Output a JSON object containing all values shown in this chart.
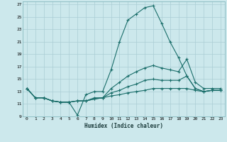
{
  "xlabel": "Humidex (Indice chaleur)",
  "ylabel": "",
  "bg_color": "#cce8ec",
  "grid_color": "#aacdd4",
  "line_color": "#1a6e6a",
  "xlim": [
    -0.5,
    23.5
  ],
  "ylim": [
    9,
    27.5
  ],
  "yticks": [
    9,
    11,
    13,
    15,
    17,
    19,
    21,
    23,
    25,
    27
  ],
  "xticks": [
    0,
    1,
    2,
    3,
    4,
    5,
    6,
    7,
    8,
    9,
    10,
    11,
    12,
    13,
    14,
    15,
    16,
    17,
    18,
    19,
    20,
    21,
    22,
    23
  ],
  "series": [
    [
      13.5,
      12.0,
      12.0,
      11.5,
      11.3,
      11.3,
      9.2,
      12.5,
      13.0,
      13.0,
      16.5,
      21.0,
      24.5,
      25.5,
      26.5,
      26.8,
      24.0,
      21.0,
      18.5,
      15.5,
      13.5,
      13.0,
      13.2,
      13.2
    ],
    [
      13.5,
      12.0,
      12.0,
      11.5,
      11.3,
      11.3,
      11.5,
      11.5,
      12.0,
      12.0,
      13.5,
      14.5,
      15.5,
      16.2,
      16.8,
      17.2,
      16.8,
      16.5,
      16.2,
      18.2,
      14.5,
      13.5,
      13.5,
      13.5
    ],
    [
      13.5,
      12.0,
      12.0,
      11.5,
      11.3,
      11.3,
      11.5,
      11.5,
      11.8,
      12.0,
      12.8,
      13.2,
      13.8,
      14.2,
      14.8,
      15.0,
      14.8,
      14.8,
      14.8,
      15.5,
      13.5,
      13.0,
      13.2,
      13.2
    ],
    [
      13.5,
      12.0,
      12.0,
      11.5,
      11.3,
      11.3,
      11.5,
      11.5,
      11.8,
      12.0,
      12.3,
      12.5,
      12.8,
      13.0,
      13.2,
      13.5,
      13.5,
      13.5,
      13.5,
      13.5,
      13.2,
      13.0,
      13.2,
      13.2
    ]
  ]
}
